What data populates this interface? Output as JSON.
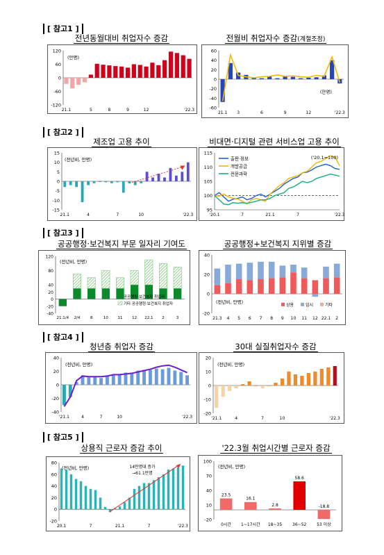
{
  "sections": [
    "[ 참고1 ]",
    "[ 참고2 ]",
    "[ 참고3 ]",
    "[ 참고4 ]",
    "[ 참고5 ]"
  ],
  "titles": {
    "c1": "전년동월대비 취업자수 증감",
    "c2": "전월비 취업자수 증감",
    "c2_suffix": "(계절조정)",
    "c3": "제조업 고용 추이",
    "c4": "비대면·디지털 관련 서비스업 고용 추이",
    "c5": "공공행정·보건복지 부문 일자리 기여도",
    "c6": "공공행정+보건복지 지위별 증감",
    "c7": "청년층 취업자 증감",
    "c8": "30대 실질취업자수 증감",
    "c9": "상용직 근로자 증감 추이",
    "c10": "'22.3월 취업시간별 근로자 증감"
  },
  "chart_data": [
    {
      "id": "c1",
      "type": "bar",
      "unit": "(만명)",
      "values": [
        -27,
        -47,
        -31,
        -20,
        14,
        62,
        58,
        55,
        52,
        50,
        45,
        60,
        57,
        50,
        67,
        56,
        78,
        116,
        110,
        100,
        84
      ],
      "ylim": [
        -120,
        120
      ],
      "yticks": [
        120,
        60,
        0,
        -60,
        -120
      ],
      "xtick_labels": [
        "21.1",
        "5",
        "8",
        "9",
        "12",
        "'22.3"
      ],
      "xtick_index": [
        0,
        4,
        7,
        10,
        13,
        20
      ],
      "colors": {
        "neg": "#f2a7a7",
        "pos": "#d0021b"
      }
    },
    {
      "id": "c2",
      "type": "bar+line",
      "unit": "(만명)",
      "bars": [
        -48,
        34,
        14,
        9,
        3,
        2,
        6,
        2,
        6,
        5,
        2,
        3,
        4,
        8,
        40,
        -9
      ],
      "line": [
        -46,
        51,
        8,
        5,
        3,
        5,
        6,
        9,
        6,
        7,
        5,
        4,
        8,
        6,
        47,
        -7
      ],
      "ylim": [
        -60,
        60
      ],
      "yticks": [
        60,
        40,
        20,
        0,
        -20,
        -40,
        -60
      ],
      "xtick_labels": [
        "21.1",
        "3",
        "6",
        "9",
        "12",
        "'22.3"
      ],
      "xtick_index": [
        0,
        2,
        5,
        8,
        11,
        15
      ],
      "colors": {
        "bar": "#2645b8",
        "line": "#f5b800"
      }
    },
    {
      "id": "c3",
      "type": "bar",
      "unit": "(전년비, 만명)",
      "values": [
        -3,
        -2,
        -3,
        -11,
        -2,
        -1,
        0,
        -0.5,
        -1,
        -0.5,
        -6,
        -1,
        -2,
        -1,
        5,
        2,
        4,
        2,
        7,
        3,
        5,
        10
      ],
      "ylim": [
        -15,
        15
      ],
      "yticks": [
        15,
        10,
        5,
        0,
        -5,
        -10,
        -15
      ],
      "xtick_labels": [
        "21.1",
        "4",
        "7",
        "10",
        "'22.3"
      ],
      "xtick_index": [
        0,
        4,
        9,
        13,
        21
      ],
      "colors": {
        "neg": "#2aa7b5",
        "pos": "#5b4ed6",
        "trend": "#e83030"
      }
    },
    {
      "id": "c4",
      "type": "line",
      "unit": "('20.1=100)",
      "ylim": [
        95,
        115
      ],
      "yticks": [
        115,
        110,
        105,
        100,
        95
      ],
      "xtick_labels": [
        "'20.1",
        "7",
        "21.1",
        "7",
        "'22.3"
      ],
      "baseline": 100,
      "series": [
        {
          "name": "출판·정보",
          "color": "#1f5fd6",
          "values": [
            100,
            101,
            99.5,
            98,
            98.7,
            99,
            99.5,
            98.5,
            99,
            100,
            100.5,
            99.5,
            100.5,
            101.5,
            102.5,
            104,
            105,
            106,
            106.5,
            108,
            108.2,
            109,
            110,
            110.5,
            111,
            110.5,
            109.5,
            109.2
          ]
        },
        {
          "name": "개발공급",
          "color": "#f2b400",
          "values": [
            100,
            99.8,
            100.5,
            99.5,
            99,
            98.8,
            98,
            97,
            98.5,
            99,
            98.5,
            98,
            100.5,
            102,
            103.5,
            104.5,
            106,
            106.5,
            107,
            108,
            108.5,
            110,
            111.5,
            112,
            113,
            114,
            113.5,
            110.5
          ]
        },
        {
          "name": "전문과학",
          "color": "#14b07d",
          "values": [
            100,
            98.5,
            97,
            96.8,
            97.5,
            97.3,
            97.5,
            97.3,
            97.6,
            98,
            98.5,
            98.5,
            99,
            100,
            100.5,
            101,
            102.5,
            103,
            104,
            105,
            104.5,
            105,
            106,
            106.5,
            107,
            107.5,
            107.2,
            106.8
          ]
        }
      ]
    },
    {
      "id": "c5",
      "type": "stacked-bar",
      "unit": "(전년비, 만명)",
      "categories": [
        "21.1/4",
        "2/4",
        "8",
        "10",
        "11",
        "12",
        "22.1",
        "2",
        "3"
      ],
      "series": [
        {
          "name": "공공행정·보건복지 취업자",
          "values": [
            -20,
            30,
            30,
            30,
            30,
            40,
            40,
            30,
            30
          ],
          "color": "#0b8a2a"
        },
        {
          "name": "기타 공공행정·보건복지 취업자",
          "values": [
            0,
            40,
            30,
            50,
            30,
            40,
            70,
            70,
            60
          ],
          "color": "#7cc67c",
          "hatch": true
        }
      ],
      "ylim": [
        -40,
        120
      ],
      "yticks": [
        120,
        80,
        40,
        20,
        0,
        -20,
        -40
      ],
      "yticks_display": [
        "120",
        "80",
        "40",
        "20",
        "0",
        "-20",
        "-40"
      ]
    },
    {
      "id": "c6",
      "type": "stacked-bar",
      "unit": "(전년비, 만명)",
      "categories": [
        "21.3",
        "4",
        "5",
        "6",
        "7",
        "8",
        "9",
        "10",
        "11",
        "12",
        "22.1",
        "2"
      ],
      "series": [
        {
          "name": "상용",
          "values": [
            9,
            11,
            15,
            14,
            15,
            16,
            17,
            22,
            16,
            14,
            16,
            17
          ],
          "color": "#f05a5a"
        },
        {
          "name": "임시",
          "values": [
            17,
            19,
            16,
            18,
            18,
            17,
            12,
            8,
            11,
            -3,
            12,
            14
          ],
          "color": "#87aad6"
        },
        {
          "name": "기타",
          "values": [
            0,
            0,
            0,
            0,
            0,
            0,
            0,
            0,
            0,
            0,
            0,
            0
          ],
          "color": "#f5a3a3"
        }
      ],
      "ylim": [
        -20,
        40
      ],
      "yticks": [
        40,
        20,
        0,
        -20
      ]
    },
    {
      "id": "c7",
      "type": "bar+line",
      "unit": "(전년비, 만명)",
      "bars": [
        -30,
        -18,
        4,
        14,
        11,
        12,
        10,
        14,
        14,
        15,
        18,
        18,
        21,
        22,
        22,
        24,
        23,
        25,
        21,
        19,
        14
      ],
      "line": [
        -32,
        -18,
        6,
        13,
        12,
        12,
        12,
        13,
        15,
        15,
        16,
        17,
        19,
        21,
        23,
        26,
        28,
        29,
        26,
        22,
        18
      ],
      "ylim": [
        -40,
        40
      ],
      "yticks": [
        40,
        20,
        0,
        -20,
        -40
      ],
      "xtick_labels": [
        "'21.1",
        "4",
        "7",
        "10",
        "'22.3"
      ],
      "colors": {
        "neg": "#2aa7b5",
        "bar": "#6b9bd8",
        "line": "#6a1dd4"
      }
    },
    {
      "id": "c8",
      "type": "bar",
      "unit": "(전년비, 만명)",
      "values": [
        -16,
        -8,
        -4,
        -2,
        1,
        3,
        0,
        -2,
        0,
        2,
        5,
        10,
        8,
        7,
        9,
        10,
        12,
        13,
        14
      ],
      "ylim": [
        -20,
        20
      ],
      "yticks": [
        20,
        10,
        0,
        -10,
        -20
      ],
      "xtick_labels": [
        "'21.1",
        "4",
        "7",
        "10",
        "'22.3"
      ],
      "colors": {
        "neg": "#f6d3a3",
        "pos": "#f08a2a",
        "last": "#b0101a"
      }
    },
    {
      "id": "c9",
      "type": "bar",
      "unit": "(전년비, 만명)",
      "annotation": [
        "14만명대 증가",
        "→61.1만명"
      ],
      "values": [
        70,
        68,
        60,
        52,
        48,
        40,
        35,
        33,
        20,
        4,
        -5,
        2,
        5,
        12,
        20,
        35,
        40,
        45,
        45,
        50,
        55,
        60,
        68,
        70,
        72,
        75
      ],
      "ylim": [
        -20,
        80
      ],
      "yticks": [
        80,
        60,
        40,
        20,
        0,
        -20
      ],
      "xtick_labels": [
        "20.1",
        "7",
        "21.1",
        "7",
        "'22.3"
      ],
      "colors": {
        "bar": "#2ab4b4",
        "trend": "#e83030"
      }
    },
    {
      "id": "c10",
      "type": "bar",
      "unit": "(전년비, 만명)",
      "categories": [
        "0시간",
        "1~17시간",
        "18~35",
        "36~52",
        "53 이상"
      ],
      "values": [
        23.5,
        16.1,
        2.8,
        58.6,
        -18.8
      ],
      "labels": [
        "23.5",
        "16.1",
        "2.8",
        "58.6",
        "-18.8"
      ],
      "ylim": [
        -20,
        100
      ],
      "yticks": [
        100,
        70,
        40,
        10,
        -20
      ],
      "colors": {
        "default": "#f06a6a",
        "highlight": "#e00000"
      }
    }
  ]
}
